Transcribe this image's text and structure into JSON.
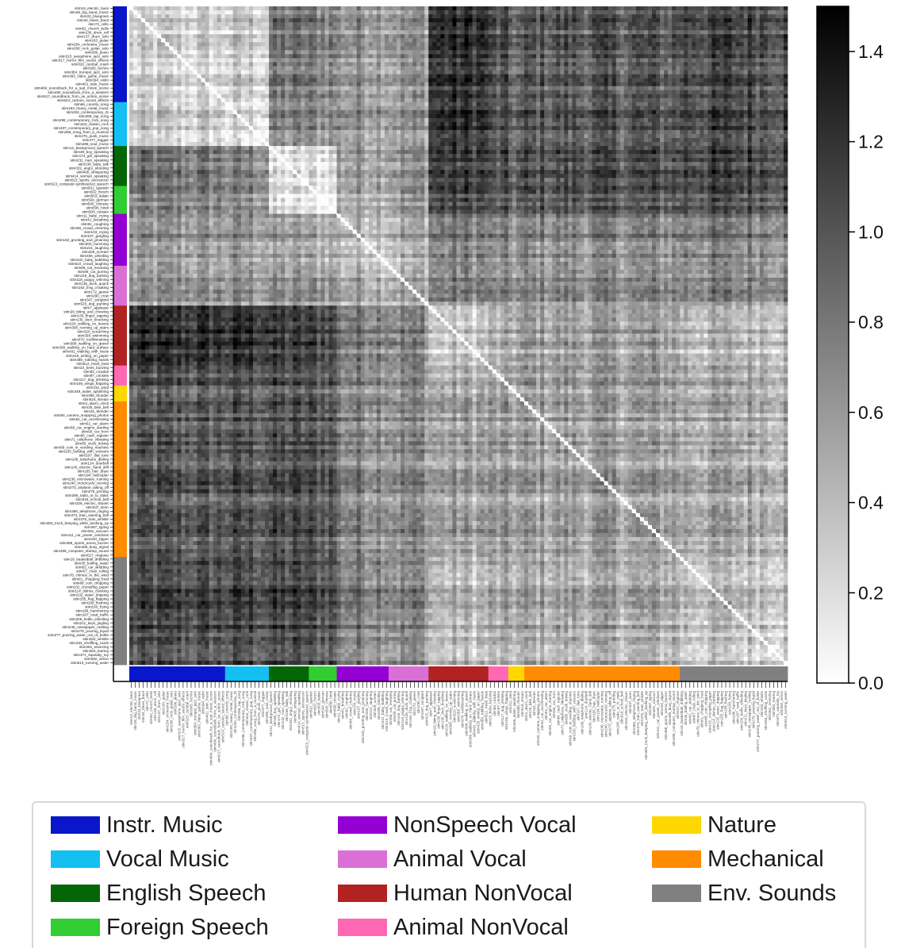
{
  "chart_data": {
    "type": "heatmap",
    "title": "",
    "n_stimuli": 165,
    "diagonal_value": 0,
    "colorbar": {
      "min": 0.0,
      "max": 1.5,
      "ticks": [
        "0.0",
        "0.2",
        "0.4",
        "0.6",
        "0.8",
        "1.0",
        "1.2",
        "1.4"
      ],
      "colormap": "gray_r"
    },
    "categories": [
      {
        "name": "Instr. Music",
        "color": "#0a16c9",
        "count": 24
      },
      {
        "name": "Vocal Music",
        "color": "#14bff2",
        "count": 11
      },
      {
        "name": "English Speech",
        "color": "#046606",
        "count": 10
      },
      {
        "name": "Foreign Speech",
        "color": "#32cd32",
        "count": 7
      },
      {
        "name": "NonSpeech Vocal",
        "color": "#9400d3",
        "count": 13
      },
      {
        "name": "Animal Vocal",
        "color": "#da70d6",
        "count": 10
      },
      {
        "name": "Human NonVocal",
        "color": "#b22222",
        "count": 15
      },
      {
        "name": "Animal NonVocal",
        "color": "#ff69b4",
        "count": 5
      },
      {
        "name": "Nature",
        "color": "#ffd700",
        "count": 4
      },
      {
        "name": "Mechanical",
        "color": "#ff8c00",
        "count": 39
      },
      {
        "name": "Env. Sounds",
        "color": "#808080",
        "count": 27
      }
    ],
    "block_means": [
      [
        0.22,
        0.28,
        0.75,
        0.72,
        0.62,
        0.6,
        1.18,
        0.95,
        0.85,
        0.95,
        1.05
      ],
      [
        0.28,
        0.2,
        0.7,
        0.68,
        0.65,
        0.62,
        1.2,
        0.98,
        0.9,
        0.98,
        1.08
      ],
      [
        0.75,
        0.7,
        0.12,
        0.15,
        0.55,
        0.62,
        1.1,
        0.95,
        0.9,
        1.0,
        1.08
      ],
      [
        0.72,
        0.68,
        0.15,
        0.1,
        0.55,
        0.62,
        1.08,
        0.95,
        0.9,
        1.0,
        1.05
      ],
      [
        0.62,
        0.65,
        0.55,
        0.55,
        0.45,
        0.5,
        0.78,
        0.7,
        0.68,
        0.72,
        0.78
      ],
      [
        0.6,
        0.62,
        0.62,
        0.62,
        0.5,
        0.48,
        0.72,
        0.65,
        0.62,
        0.68,
        0.72
      ],
      [
        1.18,
        1.2,
        1.1,
        1.08,
        0.78,
        0.72,
        0.3,
        0.4,
        0.5,
        0.55,
        0.42
      ],
      [
        0.95,
        0.98,
        0.95,
        0.95,
        0.7,
        0.65,
        0.4,
        0.38,
        0.48,
        0.55,
        0.48
      ],
      [
        0.85,
        0.9,
        0.9,
        0.9,
        0.68,
        0.62,
        0.5,
        0.48,
        0.45,
        0.55,
        0.5
      ],
      [
        0.95,
        0.98,
        1.0,
        1.0,
        0.72,
        0.68,
        0.55,
        0.55,
        0.55,
        0.55,
        0.52
      ],
      [
        1.05,
        1.08,
        1.08,
        1.05,
        0.78,
        0.72,
        0.42,
        0.48,
        0.5,
        0.52,
        0.4
      ]
    ],
    "stimulus_labels_visible": [
      "stim19_electric_bass",
      "stim28_big_band_music",
      "stim33_bluegrass",
      "stim34_blues_band",
      "stim72_cello",
      "stim82_church_bells",
      "stim136_drum_roll",
      "stim137_drum_solo",
      "stim183_guitar",
      "stim254_orchestra_music",
      "stim266_rock_guitar_solo",
      "stim286_piano",
      "stim315_saxophone_jazz_solo",
      "stim317_horror_film_sound_effects",
      "stim320_cymbal_crash",
      "stim365_techno",
      "stim384_trumpet_jazz_solo",
      "stim393_video_game_music",
      "stim394_violin",
      "stim401_latin_music",
      "stim484_soundtrack_for_a_sad_movie_scene",
      "stim490_soundtrack_from_a_western",
      "stim517_soundtrack_from_an_action_scene",
      "stim524_cartoon_sound_effects",
      "stim66_country_song",
      "stim193_heavy_metal_music",
      "stim283_contemporary_rb",
      "stim289_rap_song",
      "stim298_contemporary_rock_song",
      "stim434_classic_rock",
      "stim437_contemporary_pop_song",
      "stim465_song_from_a_musical",
      "stim475_punk_music",
      "stim477_reggae",
      "stim485_soul_music",
      "stim12_background_speech",
      "stim38_boy_speaking",
      "stim174_girl_speaking",
      "stim232_man_speaking",
      "stim238_baby_talk",
      "stim332_angry_shouting",
      "stim405_whispering",
      "stim414_woman_speaking",
      "stim515_sports_announcer",
      "stim523_computer-synthesized_speech",
      "stim501_spanish",
      "stim502_french",
      "stim503_italian",
      "stim504_german",
      "stim505_chinese",
      "stim506_hindi",
      "stim508_russian",
      "stim11_baby_crying",
      "stim41_breathing",
      "stim91_coughing",
      "stim98_crowd_cheering",
      "stim103_crying",
      "stim107_gargling",
      "stim182_grunting_and_groaning",
      "stim200_humming",
      "stim221_laughing",
      "stim325_scream",
      "stim406_whistling",
      "stim422_baby_babbling",
      "stim510_crowd_laughing",
      "stim68_cat_meowing",
      "stim69_cat_purring",
      "stim116_dog_barking",
      "stim118_puppy_whining",
      "stim135_duck_quack",
      "stim162_frog_croaking",
      "stim172_geese",
      "stim290_crow",
      "stim347_songbird",
      "stim525_dog_panting",
      "stim7_applause",
      "stim29_biting_and_chewing",
      "stim130_finger_tapping",
      "stim135_door_knocking",
      "stim224_walking_on_leaves",
      "stim308_running_up_stairs",
      "stim320_scratching",
      "stim358_swimming",
      "stim370_toothbrushing",
      "stim398_walking_on_gravel",
      "stim399_walking_on_hard_surface",
      "stim401_walking_with_heels",
      "stim416_writing_on_paper",
      "stim480_rubbing_hands",
      "stim512_heart_beat",
      "stim23_bees_buzzing",
      "stim63_cicadas",
      "stim97_crickets",
      "stim117_dog_drinking",
      "stim156_wings_flapping",
      "stim312_wind",
      "stim349_water_splashing",
      "stim368_thunder",
      "stim518_stream",
      "stim3_alarm_clock",
      "stim25_bike_bell",
      "stim31_blender",
      "stim50_camera_snapping_photos",
      "stim51_car_accelerating",
      "stim52_car_alarm",
      "stim59_car_engine_starting",
      "stim60_car_horn",
      "stim65_cash_register",
      "stim71_cellphone_vibrating",
      "stim85_clock_ticking",
      "stim89_coin_in_vending_machine",
      "stim105_bulldog_with_scissors",
      "stim107_dial_tone",
      "stim108_telephone_dialing",
      "stim124_doorbell",
      "stim140_electric_hand_drill",
      "stim185_hair_dryer",
      "stim194_helicopter",
      "stim236_microwave_running",
      "stim240_motorcycle_revving",
      "stim273_airplane_taking_off",
      "stim275_printing",
      "stim285_radio_or_tv_static",
      "stim318_school_bell",
      "stim329_electric_shaver",
      "stim337_siren",
      "stim366_telephone_ringing",
      "stim373_train_warning_bell",
      "stim378_train_whistle",
      "stim383_truck_beeping_while_backing_up",
      "stim387_typing",
      "stim391_vacuum",
      "stim411_car_power_windows",
      "stim420_zipper",
      "stim488_sports_arena_buzzer",
      "stim489_busy_signal",
      "stim498_computer_startup_sound",
      "stim527_ringtone",
      "stim18_basketball_dribbling",
      "stim35_boiling_water",
      "stim62_car_skidding",
      "stim67_chair_rolling",
      "stim78_chimes_in_the_wind",
      "stim81_chopping_food",
      "stim88_coin_dropping",
      "stim102_crumpling_paper",
      "stim114_dishes_clanking",
      "stim132_water_dripping",
      "stim155_flag_flapping",
      "stim158_flushing",
      "stim163_frying",
      "stim186_hammering",
      "stim187_road_traffic",
      "stim209_kettle_whistling",
      "stim211_keys_jingling",
      "stim246_newspaper_rustling",
      "stim276_pouring_liquid",
      "stim277_pouring_water_out_of_bottle",
      "stim293_whistle",
      "stim334_shuffling_cards",
      "stim352_sneezing",
      "stim364_tearing",
      "stim371_squeaky_toy",
      "stim392_velcro",
      "stim513_running_water"
    ]
  },
  "legend": {
    "items": [
      {
        "label": "Instr. Music",
        "color": "#0a16c9"
      },
      {
        "label": "Vocal Music",
        "color": "#14bff2"
      },
      {
        "label": "English Speech",
        "color": "#046606"
      },
      {
        "label": "Foreign Speech",
        "color": "#32cd32"
      },
      {
        "label": "NonSpeech Vocal",
        "color": "#9400d3"
      },
      {
        "label": "Animal Vocal",
        "color": "#da70d6"
      },
      {
        "label": "Human NonVocal",
        "color": "#b22222"
      },
      {
        "label": "Animal NonVocal",
        "color": "#ff69b4"
      },
      {
        "label": "Nature",
        "color": "#ffd700"
      },
      {
        "label": "Mechanical",
        "color": "#ff8c00"
      },
      {
        "label": "Env. Sounds",
        "color": "#808080"
      }
    ]
  }
}
